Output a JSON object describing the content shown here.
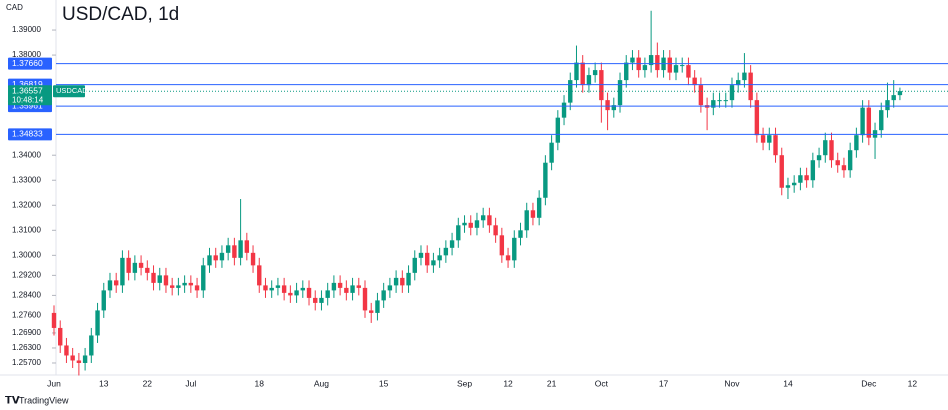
{
  "chart_data": {
    "type": "candlestick",
    "title": "USD/CAD, 1d",
    "y_unit": "CAD",
    "footer": "TradingView",
    "categories": [
      "Jun",
      null,
      null,
      null,
      null,
      null,
      null,
      null,
      "13",
      null,
      null,
      null,
      null,
      null,
      null,
      "22",
      null,
      null,
      null,
      null,
      null,
      null,
      "Jul",
      null,
      null,
      null,
      null,
      null,
      null,
      null,
      null,
      null,
      null,
      "18",
      null,
      null,
      null,
      null,
      null,
      null,
      null,
      null,
      null,
      "Aug",
      null,
      null,
      null,
      null,
      null,
      null,
      null,
      null,
      null,
      "15",
      null,
      null,
      null,
      null,
      null,
      null,
      null,
      null,
      null,
      null,
      null,
      null,
      "Sep",
      null,
      null,
      null,
      null,
      null,
      null,
      "12",
      null,
      null,
      null,
      null,
      null,
      null,
      "21",
      null,
      null,
      null,
      null,
      null,
      null,
      null,
      "Oct",
      null,
      null,
      null,
      null,
      null,
      null,
      null,
      null,
      null,
      "17",
      null,
      null,
      null,
      null,
      null,
      null,
      null,
      null,
      null,
      null,
      "Nov",
      null,
      null,
      null,
      null,
      null,
      null,
      null,
      null,
      "14",
      null,
      null,
      null,
      null,
      null,
      null,
      null,
      null,
      null,
      null,
      null,
      null,
      "Dec",
      null,
      null,
      null,
      null,
      null,
      null,
      "12"
    ],
    "open": [
      1.277,
      1.271,
      1.264,
      1.26,
      1.258,
      1.257,
      1.26,
      1.268,
      1.278,
      1.286,
      1.29,
      1.288,
      1.299,
      1.293,
      1.297,
      1.295,
      1.293,
      1.289,
      1.292,
      1.288,
      1.287,
      1.288,
      1.289,
      1.288,
      1.286,
      1.296,
      1.3,
      1.298,
      1.301,
      1.304,
      1.299,
      1.306,
      1.301,
      1.296,
      1.288,
      1.286,
      1.287,
      1.288,
      1.285,
      1.284,
      1.286,
      1.287,
      1.283,
      1.281,
      1.283,
      1.286,
      1.289,
      1.287,
      1.285,
      1.288,
      1.287,
      1.278,
      1.277,
      1.282,
      1.286,
      1.288,
      1.291,
      1.288,
      1.293,
      1.299,
      1.301,
      1.296,
      1.298,
      1.3,
      1.303,
      1.306,
      1.312,
      1.313,
      1.311,
      1.314,
      1.316,
      1.312,
      1.308,
      1.3,
      1.298,
      1.307,
      1.31,
      1.318,
      1.315,
      1.323,
      1.337,
      1.345,
      1.355,
      1.361,
      1.37,
      1.377,
      1.368,
      1.372,
      1.374,
      1.362,
      1.358,
      1.36,
      1.37,
      1.377,
      1.379,
      1.374,
      1.376,
      1.38,
      1.374,
      1.379,
      1.373,
      1.376,
      1.376,
      1.371,
      1.368,
      1.36,
      1.359,
      1.362,
      1.362,
      1.362,
      1.368,
      1.37,
      1.373,
      1.362,
      1.348,
      1.345,
      1.348,
      1.34,
      1.327,
      1.328,
      1.329,
      1.332,
      1.33,
      1.338,
      1.34,
      1.346,
      1.338,
      1.336,
      1.334,
      1.342,
      1.348,
      1.359,
      1.347,
      1.35,
      1.358,
      1.362,
      1.364,
      null,
      null
    ],
    "high": [
      1.28,
      1.274,
      1.267,
      1.263,
      1.261,
      1.263,
      1.271,
      1.281,
      1.289,
      1.293,
      1.293,
      1.302,
      1.302,
      1.3,
      1.3,
      1.298,
      1.296,
      1.295,
      1.295,
      1.291,
      1.291,
      1.292,
      1.292,
      1.291,
      1.299,
      1.303,
      1.303,
      1.304,
      1.307,
      1.307,
      1.3225,
      1.309,
      1.304,
      1.299,
      1.291,
      1.29,
      1.291,
      1.291,
      1.288,
      1.289,
      1.29,
      1.29,
      1.286,
      1.286,
      1.289,
      1.292,
      1.292,
      1.29,
      1.291,
      1.291,
      1.29,
      1.281,
      1.285,
      1.289,
      1.291,
      1.294,
      1.294,
      1.296,
      1.302,
      1.304,
      1.304,
      1.301,
      1.303,
      1.306,
      1.309,
      1.315,
      1.316,
      1.316,
      1.317,
      1.319,
      1.319,
      1.315,
      1.311,
      1.303,
      1.31,
      1.313,
      1.321,
      1.321,
      1.326,
      1.34,
      1.348,
      1.358,
      1.364,
      1.373,
      1.3838,
      1.38,
      1.375,
      1.377,
      1.377,
      1.365,
      1.363,
      1.373,
      1.38,
      1.382,
      1.382,
      1.379,
      1.3977,
      1.385,
      1.382,
      1.382,
      1.379,
      1.379,
      1.379,
      1.374,
      1.371,
      1.363,
      1.365,
      1.365,
      1.365,
      1.371,
      1.373,
      1.3808,
      1.376,
      1.365,
      1.351,
      1.351,
      1.351,
      1.343,
      1.331,
      1.332,
      1.335,
      1.335,
      1.341,
      1.343,
      1.349,
      1.349,
      1.341,
      1.339,
      1.345,
      1.351,
      1.362,
      1.362,
      1.353,
      1.361,
      1.369,
      1.37,
      1.367,
      null,
      null
    ],
    "low": [
      1.268,
      1.261,
      1.257,
      1.255,
      1.252,
      1.254,
      1.257,
      1.265,
      1.275,
      1.283,
      1.285,
      1.285,
      1.29,
      1.29,
      1.292,
      1.29,
      1.286,
      1.286,
      1.285,
      1.284,
      1.284,
      1.285,
      1.285,
      1.283,
      1.283,
      1.293,
      1.295,
      1.295,
      1.298,
      1.296,
      1.296,
      1.298,
      1.293,
      1.285,
      1.283,
      1.283,
      1.284,
      1.282,
      1.281,
      1.281,
      1.283,
      1.28,
      1.278,
      1.278,
      1.28,
      1.283,
      1.284,
      1.282,
      1.282,
      1.284,
      1.275,
      1.273,
      1.274,
      1.279,
      1.283,
      1.285,
      1.285,
      1.285,
      1.29,
      1.296,
      1.293,
      1.293,
      1.295,
      1.297,
      1.3,
      1.303,
      1.309,
      1.308,
      1.308,
      1.311,
      1.309,
      1.305,
      1.297,
      1.295,
      1.295,
      1.304,
      1.307,
      1.312,
      1.312,
      1.32,
      1.334,
      1.342,
      1.352,
      1.358,
      1.367,
      1.365,
      1.365,
      1.369,
      1.353,
      1.35,
      1.355,
      1.357,
      1.367,
      1.374,
      1.371,
      1.371,
      1.373,
      1.371,
      1.371,
      1.37,
      1.37,
      1.373,
      1.368,
      1.365,
      1.357,
      1.35,
      1.356,
      1.359,
      1.359,
      1.359,
      1.365,
      1.367,
      1.359,
      1.345,
      1.342,
      1.342,
      1.337,
      1.324,
      1.3225,
      1.325,
      1.326,
      1.327,
      1.327,
      1.335,
      1.337,
      1.335,
      1.333,
      1.331,
      1.331,
      1.339,
      1.345,
      1.344,
      1.3385,
      1.347,
      1.355,
      1.359,
      1.362,
      null,
      null
    ],
    "close": [
      1.271,
      1.264,
      1.26,
      1.258,
      1.257,
      1.26,
      1.268,
      1.278,
      1.286,
      1.29,
      1.288,
      1.299,
      1.293,
      1.297,
      1.295,
      1.293,
      1.289,
      1.292,
      1.288,
      1.287,
      1.288,
      1.289,
      1.288,
      1.286,
      1.296,
      1.3,
      1.298,
      1.301,
      1.304,
      1.299,
      1.306,
      1.301,
      1.296,
      1.288,
      1.286,
      1.287,
      1.288,
      1.285,
      1.284,
      1.286,
      1.287,
      1.283,
      1.281,
      1.283,
      1.286,
      1.289,
      1.287,
      1.285,
      1.288,
      1.287,
      1.278,
      1.277,
      1.282,
      1.286,
      1.288,
      1.291,
      1.288,
      1.293,
      1.299,
      1.301,
      1.296,
      1.298,
      1.3,
      1.303,
      1.306,
      1.312,
      1.313,
      1.311,
      1.314,
      1.316,
      1.312,
      1.308,
      1.3,
      1.298,
      1.307,
      1.31,
      1.318,
      1.315,
      1.323,
      1.337,
      1.345,
      1.355,
      1.361,
      1.37,
      1.377,
      1.368,
      1.372,
      1.374,
      1.362,
      1.358,
      1.36,
      1.37,
      1.377,
      1.379,
      1.374,
      1.376,
      1.38,
      1.374,
      1.379,
      1.373,
      1.376,
      1.376,
      1.371,
      1.368,
      1.36,
      1.359,
      1.362,
      1.362,
      1.362,
      1.368,
      1.37,
      1.373,
      1.362,
      1.348,
      1.345,
      1.348,
      1.34,
      1.327,
      1.328,
      1.329,
      1.332,
      1.33,
      1.338,
      1.34,
      1.346,
      1.338,
      1.336,
      1.334,
      1.342,
      1.348,
      1.359,
      1.347,
      1.35,
      1.358,
      1.362,
      1.364,
      1.3656,
      null,
      null
    ],
    "up_color": "#089981",
    "down_color": "#f23645",
    "ylim": [
      1.2522,
      1.402
    ],
    "yticks": [
      {
        "value": 1.39,
        "label": "1.39000"
      },
      {
        "value": 1.38,
        "label": "1.38000"
      },
      {
        "value": 1.34,
        "label": "1.34000"
      },
      {
        "value": 1.33,
        "label": "1.33000"
      },
      {
        "value": 1.32,
        "label": "1.32000"
      },
      {
        "value": 1.31,
        "label": "1.31000"
      },
      {
        "value": 1.3,
        "label": "1.30000"
      },
      {
        "value": 1.292,
        "label": "1.29200"
      },
      {
        "value": 1.284,
        "label": "1.28400"
      },
      {
        "value": 1.276,
        "label": "1.27600"
      },
      {
        "value": 1.269,
        "label": "1.26900"
      },
      {
        "value": 1.263,
        "label": "1.26300"
      },
      {
        "value": 1.257,
        "label": "1.25700"
      }
    ],
    "grid": false,
    "levels": [
      {
        "value": 1.3766,
        "label": "1.37660"
      },
      {
        "value": 1.36819,
        "label": "1.36819"
      },
      {
        "value": 1.35961,
        "label": "1.35961"
      },
      {
        "value": 1.34833,
        "label": "1.34833"
      }
    ],
    "level_color": "#2962ff",
    "last_price": {
      "value": 1.36557,
      "label": "1.36557",
      "symbol": "USDCAD",
      "countdown": "10:48:14",
      "color": "#089981"
    }
  }
}
